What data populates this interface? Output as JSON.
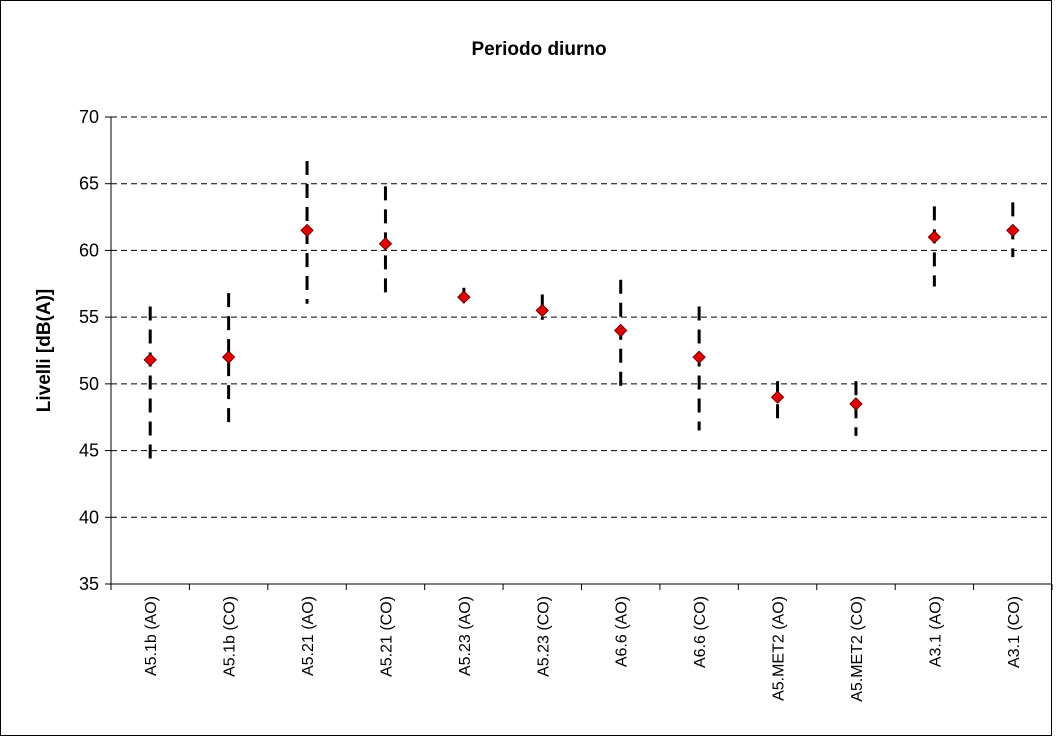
{
  "chart_data": {
    "type": "scatter",
    "title": "Periodo diurno",
    "xlabel": "",
    "ylabel": "Livelli [dB(A)]",
    "ylim": [
      35,
      70
    ],
    "yticks": [
      35,
      40,
      45,
      50,
      55,
      60,
      65,
      70
    ],
    "grid": true,
    "categories": [
      "A5.1b (AO)",
      "A5.1b (CO)",
      "A5.21 (AO)",
      "A5.21 (CO)",
      "A5.23 (AO)",
      "A5.23 (CO)",
      "A6.6 (AO)",
      "A6.6 (CO)",
      "A5.MET2 (AO)",
      "A5.MET2 (CO)",
      "A3.1 (AO)",
      "A3.1 (CO)"
    ],
    "series": [
      {
        "values": [
          51.8,
          52.0,
          61.5,
          60.5,
          56.5,
          55.5,
          54.0,
          52.0,
          49.0,
          48.5,
          61.0,
          61.5
        ],
        "min": [
          44.3,
          46.5,
          56.0,
          56.3,
          55.8,
          54.8,
          49.8,
          46.5,
          47.3,
          46.1,
          57.3,
          59.5
        ],
        "max": [
          55.8,
          56.8,
          66.7,
          64.8,
          57.2,
          56.7,
          57.8,
          55.8,
          50.2,
          50.2,
          63.3,
          63.6
        ],
        "color": "#e30000"
      }
    ]
  }
}
